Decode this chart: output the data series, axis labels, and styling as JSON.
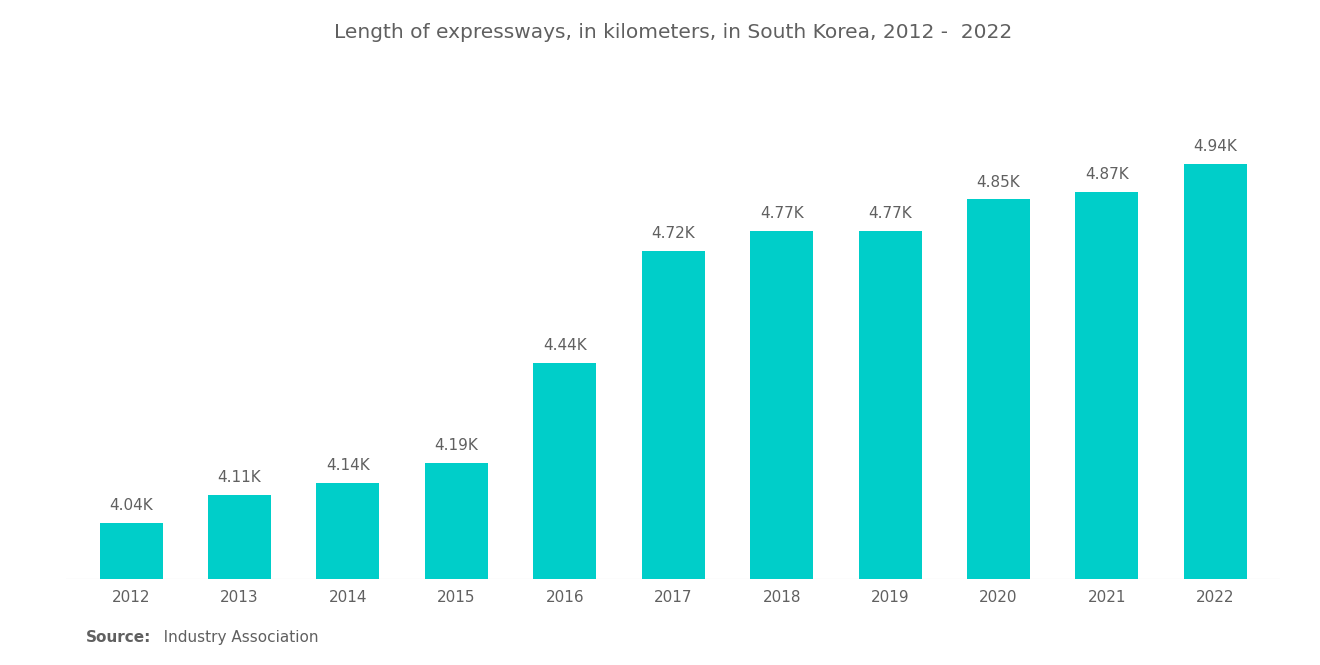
{
  "title": "Length of expressways, in kilometers, in South Korea, 2012 -  2022",
  "years": [
    2012,
    2013,
    2014,
    2015,
    2016,
    2017,
    2018,
    2019,
    2020,
    2021,
    2022
  ],
  "values": [
    4040,
    4110,
    4140,
    4190,
    4440,
    4720,
    4770,
    4770,
    4850,
    4870,
    4940
  ],
  "labels": [
    "4.04K",
    "4.11K",
    "4.14K",
    "4.19K",
    "4.44K",
    "4.72K",
    "4.77K",
    "4.77K",
    "4.85K",
    "4.87K",
    "4.94K"
  ],
  "bar_color": "#00CEC9",
  "background_color": "#ffffff",
  "title_color": "#606060",
  "label_color": "#606060",
  "tick_color": "#606060",
  "source_bold": "Source:",
  "source_normal": "   Industry Association",
  "ylim_min": 3900,
  "ylim_max": 5150,
  "title_fontsize": 14.5,
  "label_fontsize": 11,
  "tick_fontsize": 11,
  "source_fontsize": 11,
  "bar_width": 0.58
}
